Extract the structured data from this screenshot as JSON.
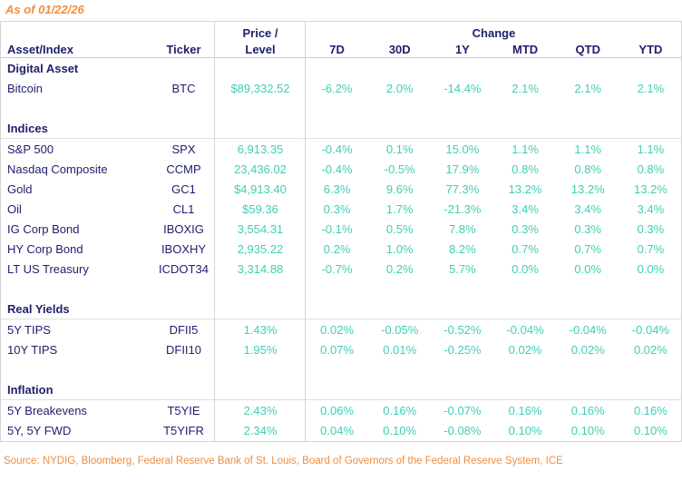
{
  "meta": {
    "as_of": "As of 01/22/26",
    "source": "Source: NYDIG, Bloomberg, Federal Reserve Bank of St. Louis, Board of Governors of the Federal Reserve System, ICE"
  },
  "colors": {
    "navy": "#20206e",
    "teal": "#3fcfb4",
    "orange": "#ef8d3e",
    "grid": "#d4d4d4"
  },
  "table": {
    "col_headers": {
      "asset": "Asset/Index",
      "ticker": "Ticker",
      "price_line1": "Price /",
      "price_line2": "Level",
      "change_group": "Change",
      "change_cols": [
        "7D",
        "30D",
        "1Y",
        "MTD",
        "QTD",
        "YTD"
      ]
    },
    "sections": [
      {
        "title": "Digital Asset",
        "divider": false,
        "gapped": false,
        "rows": [
          {
            "asset": "Bitcoin",
            "ticker": "BTC",
            "price": "$89,332.52",
            "changes": [
              "-6.2%",
              "2.0%",
              "-14.4%",
              "2.1%",
              "2.1%",
              "2.1%"
            ]
          }
        ]
      },
      {
        "title": "Indices",
        "divider": true,
        "gapped": true,
        "rows": [
          {
            "asset": "S&P 500",
            "ticker": "SPX",
            "price": "6,913.35",
            "changes": [
              "-0.4%",
              "0.1%",
              "15.0%",
              "1.1%",
              "1.1%",
              "1.1%"
            ]
          },
          {
            "asset": "Nasdaq Composite",
            "ticker": "CCMP",
            "price": "23,436.02",
            "changes": [
              "-0.4%",
              "-0.5%",
              "17.9%",
              "0.8%",
              "0.8%",
              "0.8%"
            ]
          },
          {
            "asset": "Gold",
            "ticker": "GC1",
            "price": "$4,913.40",
            "changes": [
              "6.3%",
              "9.6%",
              "77.3%",
              "13.2%",
              "13.2%",
              "13.2%"
            ]
          },
          {
            "asset": "Oil",
            "ticker": "CL1",
            "price": "$59.36",
            "changes": [
              "0.3%",
              "1.7%",
              "-21.3%",
              "3.4%",
              "3.4%",
              "3.4%"
            ]
          },
          {
            "asset": "IG Corp Bond",
            "ticker": "IBOXIG",
            "price": "3,554.31",
            "changes": [
              "-0.1%",
              "0.5%",
              "7.8%",
              "0.3%",
              "0.3%",
              "0.3%"
            ]
          },
          {
            "asset": "HY Corp Bond",
            "ticker": "IBOXHY",
            "price": "2,935.22",
            "changes": [
              "0.2%",
              "1.0%",
              "8.2%",
              "0.7%",
              "0.7%",
              "0.7%"
            ]
          },
          {
            "asset": "LT US Treasury",
            "ticker": "ICDOT34",
            "price": "3,314.88",
            "changes": [
              "-0.7%",
              "0.2%",
              "5.7%",
              "0.0%",
              "0.0%",
              "0.0%"
            ]
          }
        ]
      },
      {
        "title": "Real Yields",
        "divider": true,
        "gapped": true,
        "rows": [
          {
            "asset": "5Y TIPS",
            "ticker": "DFII5",
            "price": "1.43%",
            "changes": [
              "0.02%",
              "-0.05%",
              "-0.52%",
              "-0.04%",
              "-0.04%",
              "-0.04%"
            ]
          },
          {
            "asset": "10Y TIPS",
            "ticker": "DFII10",
            "price": "1.95%",
            "changes": [
              "0.07%",
              "0.01%",
              "-0.25%",
              "0.02%",
              "0.02%",
              "0.02%"
            ]
          }
        ]
      },
      {
        "title": "Inflation",
        "divider": true,
        "gapped": true,
        "rows": [
          {
            "asset": "5Y Breakevens",
            "ticker": "T5YIE",
            "price": "2.43%",
            "changes": [
              "0.06%",
              "0.16%",
              "-0.07%",
              "0.16%",
              "0.16%",
              "0.16%"
            ]
          },
          {
            "asset": "5Y, 5Y FWD",
            "ticker": "T5YIFR",
            "price": "2.34%",
            "changes": [
              "0.04%",
              "0.10%",
              "-0.08%",
              "0.10%",
              "0.10%",
              "0.10%"
            ]
          }
        ]
      }
    ]
  },
  "chart_data": {
    "type": "table",
    "title": "As of 01/22/26",
    "columns": [
      "Asset/Index",
      "Ticker",
      "Price / Level",
      "7D",
      "30D",
      "1Y",
      "MTD",
      "QTD",
      "YTD"
    ],
    "sections": [
      {
        "name": "Digital Asset",
        "rows": [
          [
            "Bitcoin",
            "BTC",
            "$89,332.52",
            "-6.2%",
            "2.0%",
            "-14.4%",
            "2.1%",
            "2.1%",
            "2.1%"
          ]
        ]
      },
      {
        "name": "Indices",
        "rows": [
          [
            "S&P 500",
            "SPX",
            "6,913.35",
            "-0.4%",
            "0.1%",
            "15.0%",
            "1.1%",
            "1.1%",
            "1.1%"
          ],
          [
            "Nasdaq Composite",
            "CCMP",
            "23,436.02",
            "-0.4%",
            "-0.5%",
            "17.9%",
            "0.8%",
            "0.8%",
            "0.8%"
          ],
          [
            "Gold",
            "GC1",
            "$4,913.40",
            "6.3%",
            "9.6%",
            "77.3%",
            "13.2%",
            "13.2%",
            "13.2%"
          ],
          [
            "Oil",
            "CL1",
            "$59.36",
            "0.3%",
            "1.7%",
            "-21.3%",
            "3.4%",
            "3.4%",
            "3.4%"
          ],
          [
            "IG Corp Bond",
            "IBOXIG",
            "3,554.31",
            "-0.1%",
            "0.5%",
            "7.8%",
            "0.3%",
            "0.3%",
            "0.3%"
          ],
          [
            "HY Corp Bond",
            "IBOXHY",
            "2,935.22",
            "0.2%",
            "1.0%",
            "8.2%",
            "0.7%",
            "0.7%",
            "0.7%"
          ],
          [
            "LT US Treasury",
            "ICDOT34",
            "3,314.88",
            "-0.7%",
            "0.2%",
            "5.7%",
            "0.0%",
            "0.0%",
            "0.0%"
          ]
        ]
      },
      {
        "name": "Real Yields",
        "rows": [
          [
            "5Y TIPS",
            "DFII5",
            "1.43%",
            "0.02%",
            "-0.05%",
            "-0.52%",
            "-0.04%",
            "-0.04%",
            "-0.04%"
          ],
          [
            "10Y TIPS",
            "DFII10",
            "1.95%",
            "0.07%",
            "0.01%",
            "-0.25%",
            "0.02%",
            "0.02%",
            "0.02%"
          ]
        ]
      },
      {
        "name": "Inflation",
        "rows": [
          [
            "5Y Breakevens",
            "T5YIE",
            "2.43%",
            "0.06%",
            "0.16%",
            "-0.07%",
            "0.16%",
            "0.16%",
            "0.16%"
          ],
          [
            "5Y, 5Y FWD",
            "T5YIFR",
            "2.34%",
            "0.04%",
            "0.10%",
            "-0.08%",
            "0.10%",
            "0.10%",
            "0.10%"
          ]
        ]
      }
    ],
    "source": "Source: NYDIG, Bloomberg, Federal Reserve Bank of St. Louis, Board of Governors of the Federal Reserve System, ICE"
  }
}
